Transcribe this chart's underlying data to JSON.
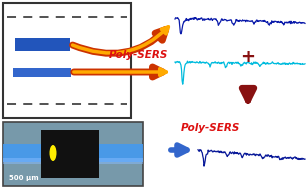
{
  "bg_color": "#ffffff",
  "panel_border": "#333333",
  "dashed_line_color": "#444444",
  "blue_rect1_color": "#2255bb",
  "blue_rect2_color": "#3366cc",
  "arrow_outer": "#cc3300",
  "arrow_inner": "#ffaa00",
  "poly_sers_color": "#dd1111",
  "spectrum1_color": "#0a1aaa",
  "spectrum2_color": "#00bbdd",
  "spectrum3_color": "#0a1a99",
  "plus_color": "#881111",
  "down_arrow_color": "#881111",
  "right_arrow_color": "#3366cc",
  "photo_bg": "#6688aa",
  "photo_blue_stripe": "#4488dd",
  "photo_black": "#111111",
  "photo_yellow": "#ffee00",
  "scale_bar_text": "500 μm"
}
